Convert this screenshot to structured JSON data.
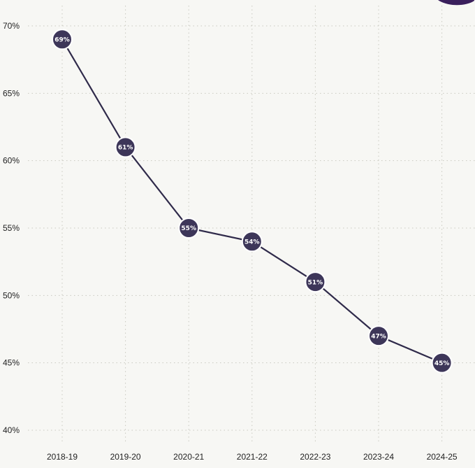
{
  "chart_data": {
    "type": "line",
    "categories": [
      "2018-19",
      "2019-20",
      "2020-21",
      "2021-22",
      "2022-23",
      "2023-24",
      "2024-25"
    ],
    "series": [
      {
        "values": [
          69,
          61,
          55,
          54,
          51,
          47,
          45
        ]
      }
    ],
    "data_labels": [
      "69%",
      "61%",
      "55%",
      "54%",
      "51%",
      "47%",
      "45%"
    ],
    "y_ticks": [
      40,
      45,
      50,
      55,
      60,
      65,
      70
    ],
    "y_tick_labels": [
      "40%",
      "45%",
      "50%",
      "55%",
      "60%",
      "65%",
      "70%"
    ],
    "ylim": [
      40,
      70
    ],
    "grid": true,
    "line_color": "#2f2a4a",
    "marker_color": "#3d3659",
    "accent_color": "#3a1f5c"
  }
}
